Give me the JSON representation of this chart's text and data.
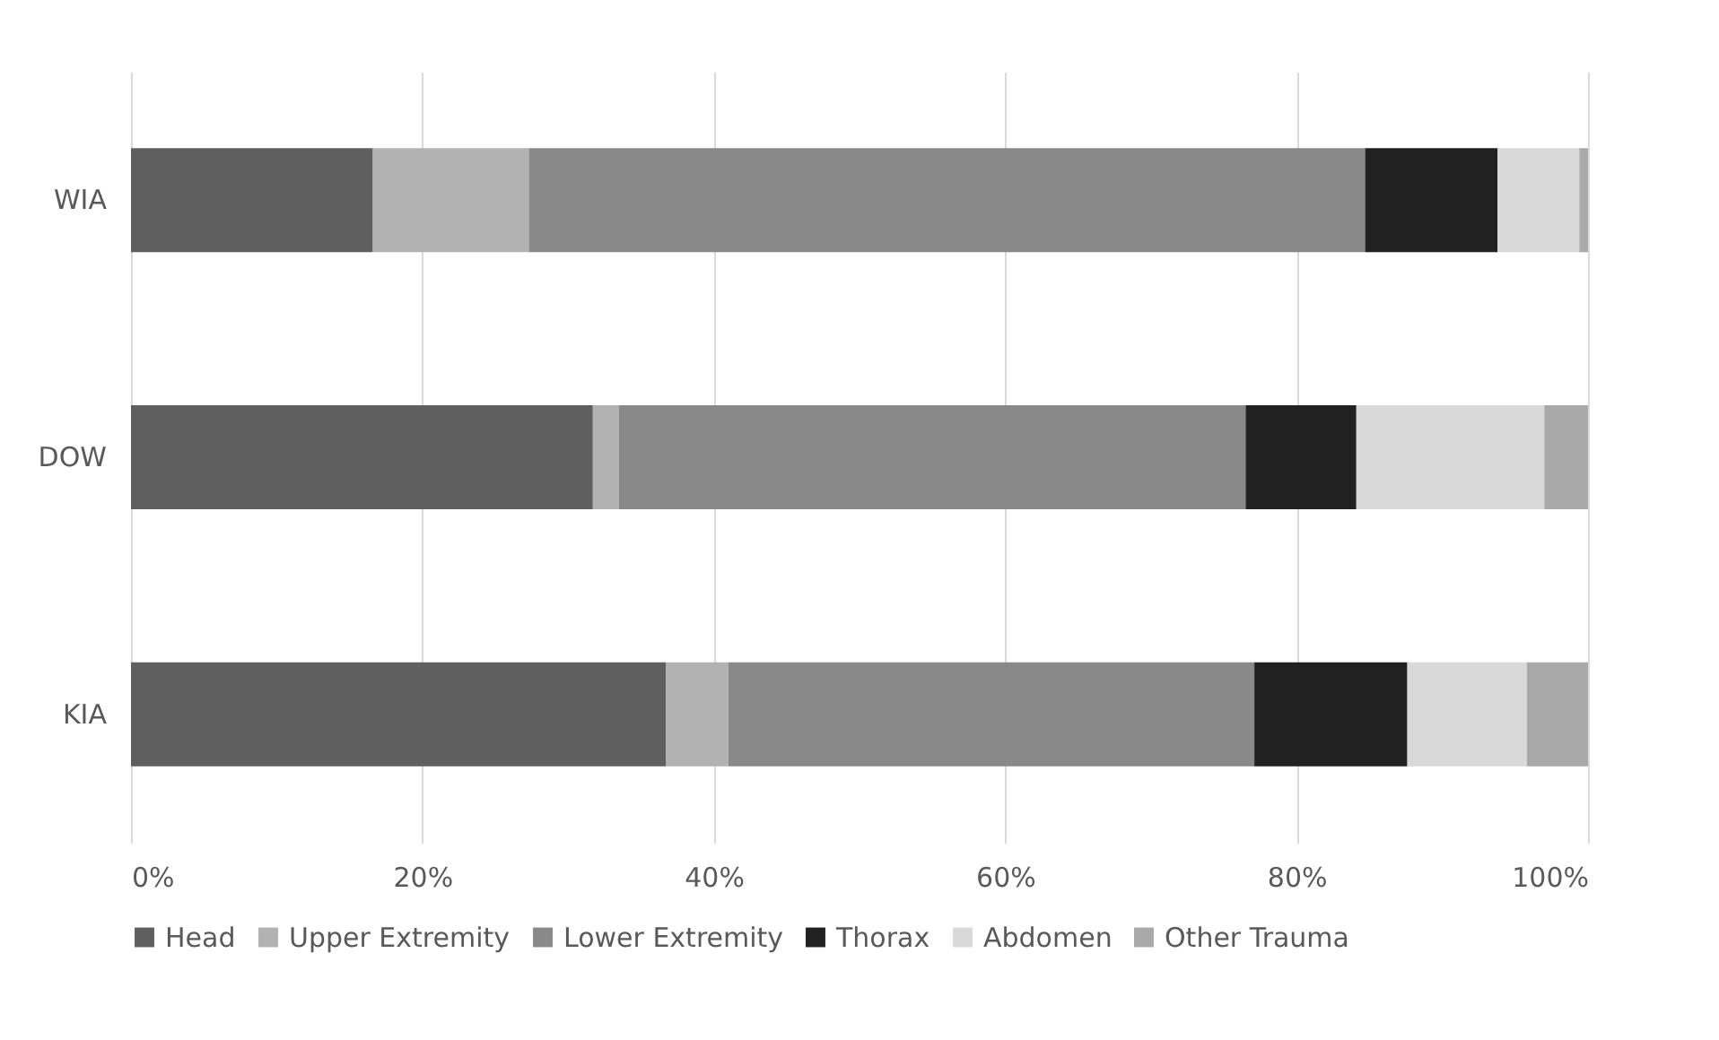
{
  "chart_data": {
    "type": "bar",
    "orientation": "horizontal",
    "stacked": true,
    "categories": [
      "WIA",
      "DOW",
      "KIA"
    ],
    "series": [
      {
        "name": "Head",
        "color": "#5f5f5f",
        "values": [
          16.6,
          31.7,
          36.7
        ]
      },
      {
        "name": "Upper Extremity",
        "color": "#b2b2b2",
        "values": [
          10.7,
          1.8,
          4.3
        ]
      },
      {
        "name": "Lower Extremity",
        "color": "#898989",
        "values": [
          57.4,
          43.0,
          36.1
        ]
      },
      {
        "name": "Thorax",
        "color": "#212121",
        "values": [
          9.1,
          7.6,
          10.5
        ]
      },
      {
        "name": "Abdomen",
        "color": "#d9d9d9",
        "values": [
          5.6,
          12.9,
          8.2
        ]
      },
      {
        "name": "Other Trauma",
        "color": "#a9a9a9",
        "values": [
          0.6,
          3.0,
          4.2
        ]
      }
    ],
    "xlim": [
      0,
      100
    ],
    "xticks": [
      {
        "value": 0,
        "label": "0%"
      },
      {
        "value": 20,
        "label": "20%"
      },
      {
        "value": 40,
        "label": "40%"
      },
      {
        "value": 60,
        "label": "60%"
      },
      {
        "value": 80,
        "label": "80%"
      },
      {
        "value": 100,
        "label": "100%"
      }
    ],
    "grid": "x",
    "legend": "bottom"
  }
}
